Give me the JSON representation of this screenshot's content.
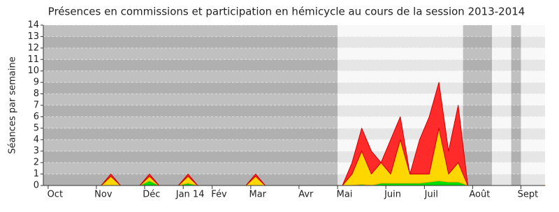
{
  "chart_data": {
    "type": "stacked_area",
    "title": "Présences en commissions et participation en hémicycle au cours de la session 2013-2014",
    "y_label": "Séances par semaine",
    "categories": [
      null,
      "Oct",
      null,
      null,
      null,
      null,
      "Nov",
      null,
      null,
      null,
      null,
      "Déc",
      null,
      null,
      null,
      "Jan 14",
      null,
      null,
      "Fév",
      null,
      null,
      null,
      "Mar",
      null,
      null,
      null,
      null,
      "Avr",
      null,
      null,
      null,
      "Mai",
      null,
      null,
      null,
      null,
      "Juin",
      null,
      null,
      null,
      "Juil",
      null,
      null,
      null,
      null,
      "Août",
      null,
      null,
      null,
      null,
      "Sept",
      null,
      null
    ],
    "series": [
      {
        "color": "#00dd00",
        "values": [
          0,
          0,
          0,
          0,
          0,
          0,
          0,
          0,
          0,
          0,
          0,
          0.4,
          0,
          0,
          0,
          0.2,
          0,
          0,
          0,
          0,
          0,
          0,
          0,
          0,
          0,
          0,
          0,
          0,
          0,
          0,
          0,
          0,
          0,
          0.1,
          0,
          0.2,
          0.2,
          0.2,
          0.2,
          0.2,
          0.3,
          0.4,
          0.3,
          0.3,
          0,
          0,
          0,
          0,
          0,
          0,
          0,
          0,
          0
        ]
      },
      {
        "color": "#ffd700",
        "values": [
          0,
          0,
          0,
          0,
          0,
          0,
          0,
          0.8,
          0,
          0,
          0,
          0.4,
          0,
          0,
          0,
          0.6,
          0,
          0,
          0,
          0,
          0,
          0,
          0.8,
          0,
          0,
          0,
          0,
          0,
          0,
          0,
          0,
          0,
          1,
          2.9,
          1,
          1.8,
          0.8,
          3.8,
          0.8,
          0.8,
          0.7,
          4.6,
          0.7,
          1.7,
          0,
          0,
          0,
          0,
          0,
          0,
          0,
          0,
          0
        ]
      },
      {
        "color": "#ff2a2a",
        "values": [
          0,
          0,
          0,
          0,
          0,
          0,
          0,
          0.2,
          0,
          0,
          0,
          0.2,
          0,
          0,
          0,
          0.2,
          0,
          0,
          0,
          0,
          0,
          0,
          0.2,
          0,
          0,
          0,
          0,
          0,
          0,
          0,
          0,
          0,
          1,
          2,
          2,
          0,
          3,
          2,
          0,
          3,
          5,
          4,
          2,
          5,
          0,
          0,
          0,
          0,
          0,
          0,
          0,
          0,
          0
        ]
      }
    ],
    "shaded_periods": [
      [
        0,
        30.5
      ],
      [
        43.5,
        46.5
      ],
      [
        48.5,
        49.5
      ]
    ],
    "ylim": [
      0,
      14
    ],
    "yticks": [
      0,
      1,
      2,
      3,
      4,
      5,
      6,
      7,
      8,
      9,
      10,
      11,
      12,
      13,
      14
    ],
    "grid": true
  }
}
